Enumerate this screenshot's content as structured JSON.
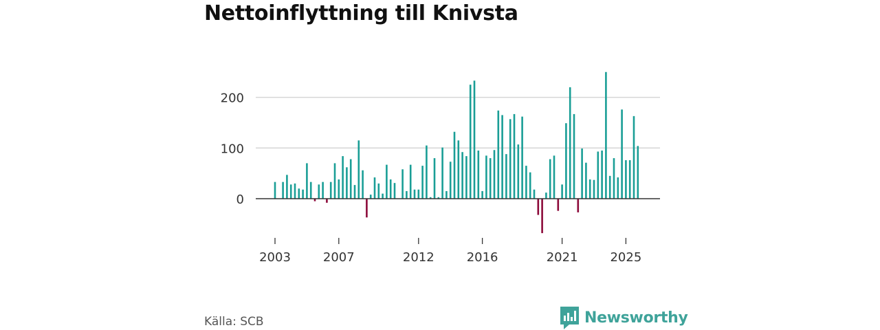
{
  "title": "Nettoinflyttning till Knivsta",
  "source": "Källa: SCB",
  "brand": {
    "name": "Newsworthy",
    "color": "#3fa39a"
  },
  "colors": {
    "positive": "#1a9e96",
    "negative": "#8c0a3a",
    "grid": "#d6d6d6",
    "axis": "#333333"
  },
  "chart_data": {
    "type": "bar",
    "title": "Nettoinflyttning till Knivsta",
    "xlabel": "",
    "ylabel": "",
    "ylim": [
      -75,
      260
    ],
    "xlim": [
      2002.5,
      2026.0
    ],
    "yticks": [
      0,
      100,
      200
    ],
    "xticks": [
      2003,
      2007,
      2012,
      2016,
      2021,
      2025
    ],
    "frequency": "quarterly",
    "start": 2003.0,
    "step": 0.25,
    "values": [
      33,
      0,
      33,
      47,
      28,
      30,
      20,
      18,
      70,
      33,
      -5,
      28,
      33,
      -8,
      33,
      70,
      38,
      84,
      62,
      78,
      27,
      115,
      56,
      -37,
      8,
      42,
      30,
      10,
      67,
      38,
      31,
      0,
      58,
      15,
      67,
      18,
      18,
      65,
      105,
      3,
      80,
      3,
      101,
      15,
      73,
      132,
      115,
      92,
      84,
      225,
      233,
      95,
      15,
      85,
      80,
      96,
      174,
      165,
      88,
      157,
      167,
      107,
      162,
      65,
      52,
      18,
      -32,
      -68,
      12,
      78,
      85,
      -24,
      28,
      149,
      220,
      167,
      -27,
      99,
      71,
      38,
      37,
      93,
      95,
      250,
      45,
      80,
      42,
      176,
      76,
      76,
      163,
      104
    ]
  }
}
